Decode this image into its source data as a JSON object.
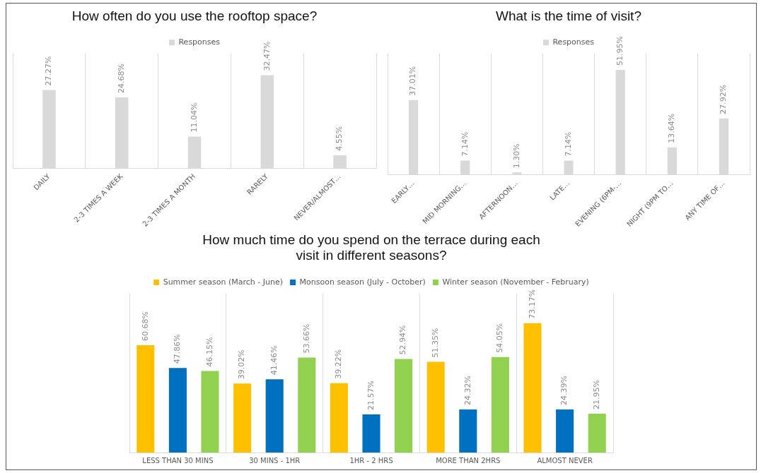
{
  "chart_data": [
    {
      "type": "bar",
      "title": "How often do you use the rooftop space?",
      "categories": [
        "DAILY",
        "2-3 TIMES A WEEK",
        "2-3 TIMES A MONTH",
        "RARELY",
        "NEVER/ALMOST…"
      ],
      "series": [
        {
          "name": "Responses",
          "color": "#d9d9d9",
          "values": [
            27.27,
            24.68,
            11.04,
            32.47,
            4.55
          ],
          "value_labels": [
            "27.27%",
            "24.68%",
            "11.04%",
            "32.47%",
            "4.55%"
          ]
        }
      ],
      "legend": "top",
      "grid": "x"
    },
    {
      "type": "bar",
      "title": "What is the time of visit?",
      "categories": [
        "EARLY…",
        "MID MORNING…",
        "AFTERNOON…",
        "LATE…",
        "EVENING (6PM-…",
        "NIGHT (9PM TO…",
        "ANY TIME OF…"
      ],
      "series": [
        {
          "name": "Responses",
          "color": "#d9d9d9",
          "values": [
            37.01,
            7.14,
            1.3,
            7.14,
            51.95,
            13.64,
            27.92
          ],
          "value_labels": [
            "37.01%",
            "7.14%",
            "1.30%",
            "7.14%",
            "51.95%",
            "13.64%",
            "27.92%"
          ]
        }
      ],
      "legend": "top",
      "grid": "x"
    },
    {
      "type": "bar",
      "title": "How much time do you spend on the terrace during each visit in different seasons?",
      "categories": [
        "LESS THAN 30 MINS",
        "30 MINS - 1HR",
        "1HR - 2 HRS",
        "MORE THAN 2HRS",
        "ALMOST NEVER"
      ],
      "series": [
        {
          "name": "Summer season (March - June)",
          "color": "#ffc000",
          "values": [
            60.68,
            39.02,
            39.22,
            51.35,
            73.17
          ],
          "value_labels": [
            "60.68%",
            "39.02%",
            "39.22%",
            "51.35%",
            "73.17%"
          ]
        },
        {
          "name": "Monsoon season (July - October)",
          "color": "#0070c0",
          "values": [
            47.86,
            41.46,
            21.57,
            24.32,
            24.39
          ],
          "value_labels": [
            "47.86%",
            "41.46%",
            "21.57%",
            "24.32%",
            "24.39%"
          ]
        },
        {
          "name": "Winter season (November - February)",
          "color": "#92d050",
          "values": [
            46.15,
            53.66,
            52.94,
            54.05,
            21.95
          ],
          "value_labels": [
            "46.15%",
            "53.66%",
            "52.94%",
            "54.05%",
            "21.95%"
          ]
        }
      ],
      "legend": "top",
      "grid": "x"
    }
  ]
}
